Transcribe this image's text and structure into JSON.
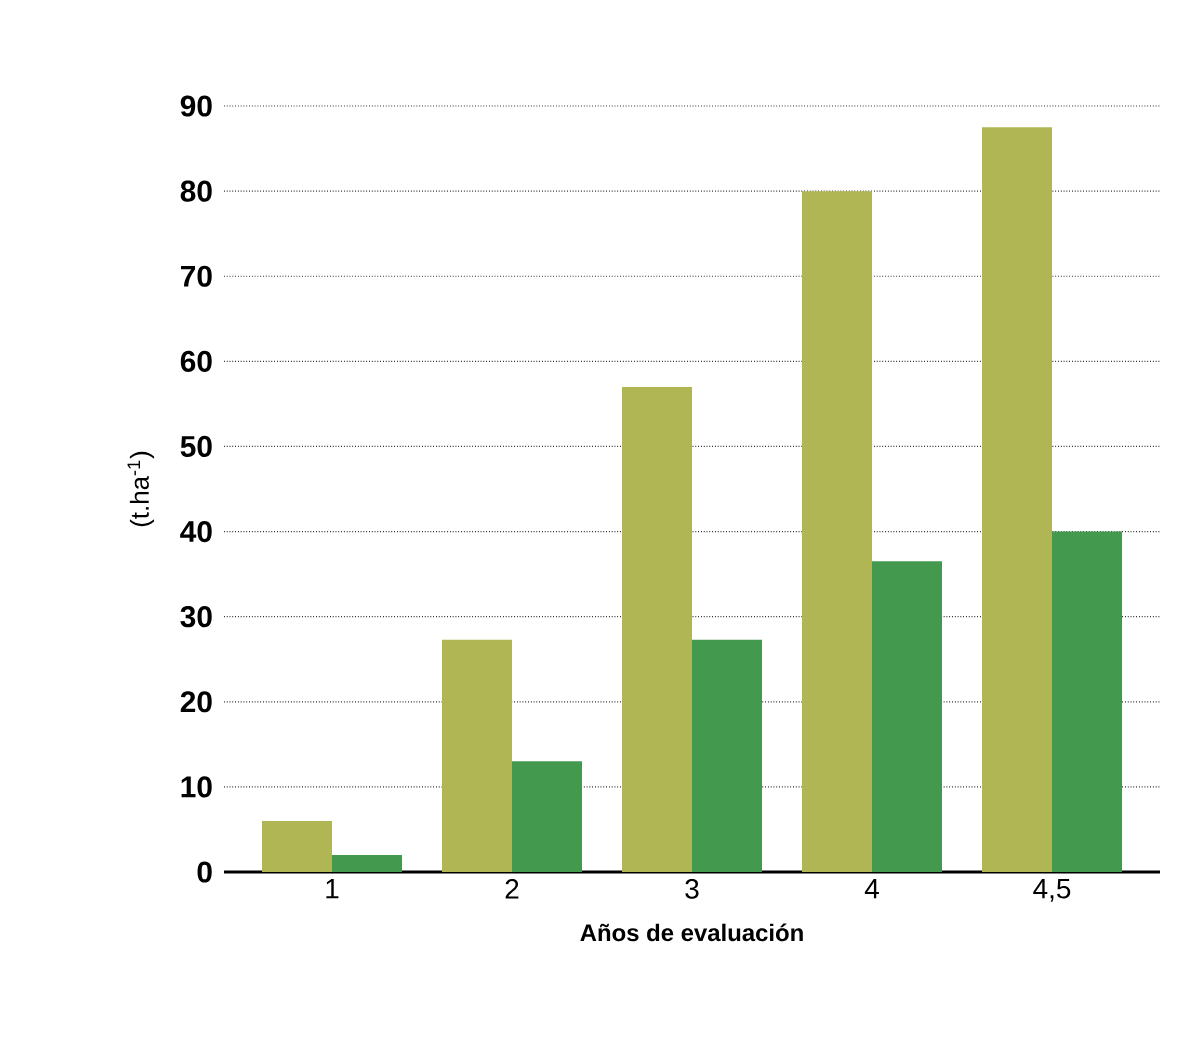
{
  "chart_data": {
    "type": "bar",
    "xlabel": "Años de evaluación",
    "ylabel": "(t.ha$^{-1}$)",
    "categories": [
      "1",
      "2",
      "3",
      "4",
      "4,5"
    ],
    "series": [
      {
        "color": "#b0b653",
        "values": [
          6,
          27.3,
          57,
          80,
          87.5
        ]
      },
      {
        "color": "#439a4f",
        "values": [
          2,
          13,
          27.3,
          36.5,
          40
        ]
      }
    ],
    "ylim": [
      0,
      90
    ],
    "yticks": [
      0,
      10,
      20,
      30,
      40,
      50,
      60,
      70,
      80,
      90
    ],
    "grid": "y"
  }
}
